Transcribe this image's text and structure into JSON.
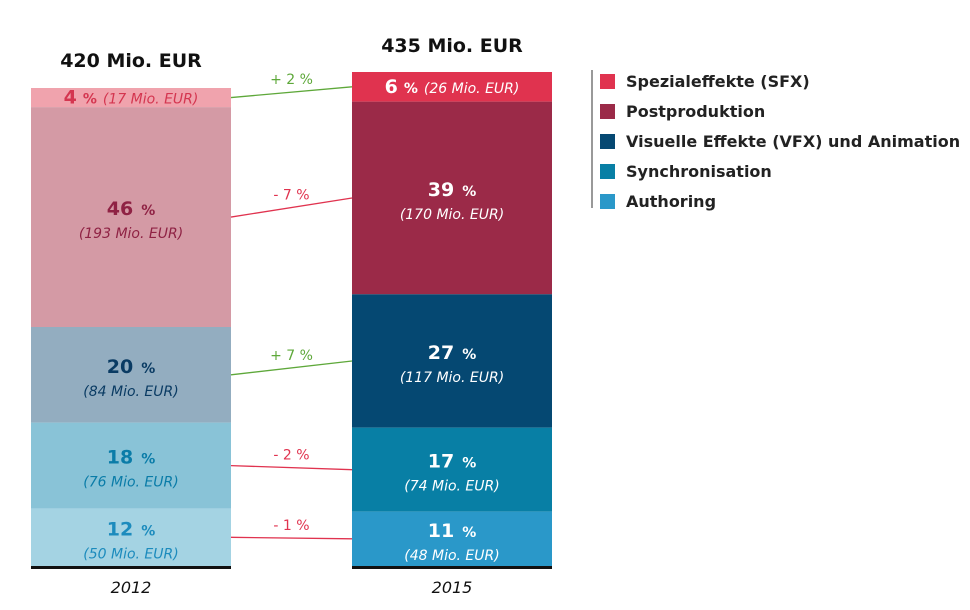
{
  "chart_data": {
    "type": "bar",
    "stacked": true,
    "categories": [
      "2012",
      "2015"
    ],
    "totals": [
      "420 Mio. EUR",
      "435 Mio. EUR"
    ],
    "series": [
      {
        "name": "Spezialeffekte (SFX)",
        "percent": [
          4,
          6
        ],
        "value_mio_eur": [
          17,
          26
        ],
        "labels_abs": [
          "(17 Mio. EUR)",
          "(26 Mio. EUR)"
        ],
        "change": "+ 2 %",
        "color": "#e0334f",
        "color_2012": "#f0a3ad",
        "label_color_2012": "#d43650",
        "change_color": "#5ea83a"
      },
      {
        "name": "Postproduktion",
        "percent": [
          46,
          39
        ],
        "value_mio_eur": [
          193,
          170
        ],
        "labels_abs": [
          "(193 Mio. EUR)",
          "(170 Mio. EUR)"
        ],
        "change": "- 7 %",
        "color": "#9b2a48",
        "color_2012": "#d49aa5",
        "label_color_2012": "#8f2244",
        "change_color": "#e0334f"
      },
      {
        "name": "Visuelle Effekte (VFX) und Animation",
        "percent": [
          20,
          27
        ],
        "value_mio_eur": [
          84,
          117
        ],
        "labels_abs": [
          "(84 Mio. EUR)",
          "(117 Mio. EUR)"
        ],
        "change": "+ 7 %",
        "color": "#054872",
        "color_2012": "#93adc0",
        "label_color_2012": "#0a3b63",
        "change_color": "#5ea83a"
      },
      {
        "name": "Synchronisation",
        "percent": [
          18,
          17
        ],
        "value_mio_eur": [
          76,
          74
        ],
        "labels_abs": [
          "(76 Mio. EUR)",
          "(74 Mio. EUR)"
        ],
        "change": "- 2 %",
        "color": "#087fa5",
        "color_2012": "#89c3d7",
        "label_color_2012": "#0a7ca8",
        "change_color": "#e0334f"
      },
      {
        "name": "Authoring",
        "percent": [
          12,
          11
        ],
        "value_mio_eur": [
          50,
          48
        ],
        "labels_abs": [
          "(50 Mio. EUR)",
          "(48 Mio. EUR)"
        ],
        "change": "- 1 %",
        "color": "#2a98c9",
        "color_2012": "#a4d3e3",
        "label_color_2012": "#1c8bbd",
        "change_color": "#e0334f"
      }
    ],
    "legend_position": "top-right",
    "percent_suffix": "%"
  }
}
